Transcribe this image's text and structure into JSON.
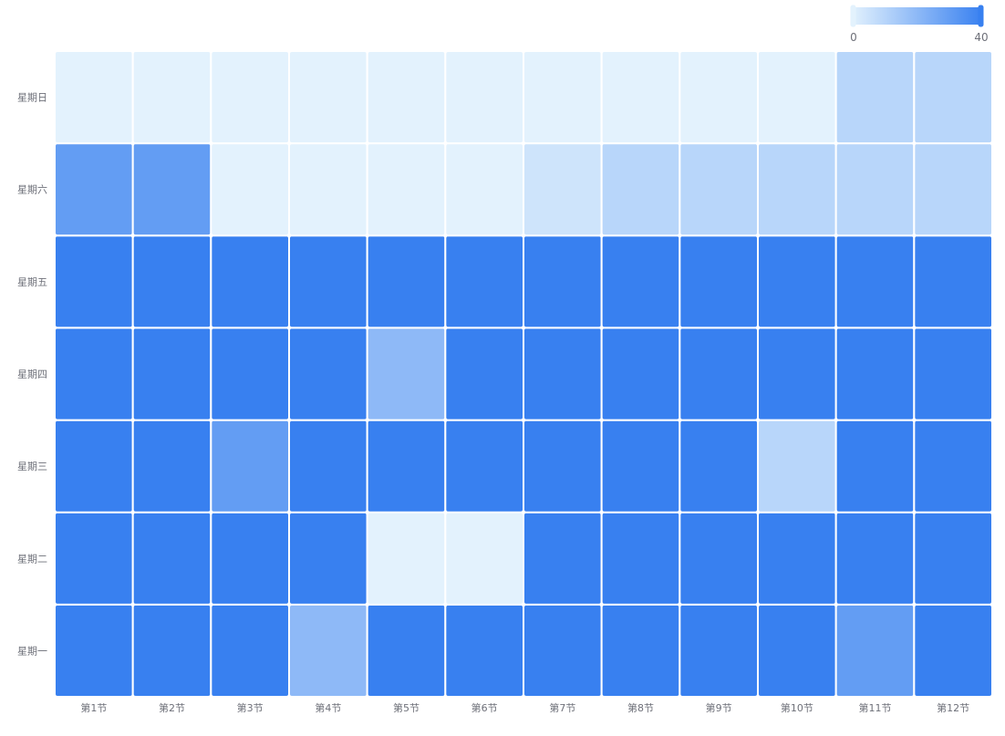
{
  "chart_data": {
    "type": "heatmap",
    "x_categories": [
      "第1节",
      "第2节",
      "第3节",
      "第4节",
      "第5节",
      "第6节",
      "第7节",
      "第8节",
      "第9节",
      "第10节",
      "第11节",
      "第12节"
    ],
    "y_categories": [
      "星期一",
      "星期二",
      "星期三",
      "星期四",
      "星期五",
      "星期六",
      "星期日"
    ],
    "values": [
      [
        40,
        40,
        40,
        20,
        40,
        40,
        40,
        40,
        40,
        40,
        30,
        40
      ],
      [
        40,
        40,
        40,
        40,
        0,
        0,
        40,
        40,
        40,
        40,
        40,
        40
      ],
      [
        40,
        40,
        30,
        40,
        40,
        40,
        40,
        40,
        40,
        10,
        40,
        40
      ],
      [
        40,
        40,
        40,
        40,
        20,
        40,
        40,
        40,
        40,
        40,
        40,
        40
      ],
      [
        40,
        40,
        40,
        40,
        40,
        40,
        40,
        40,
        40,
        40,
        40,
        40
      ],
      [
        30,
        30,
        0,
        0,
        0,
        0,
        5,
        10,
        10,
        10,
        10,
        10
      ],
      [
        0,
        0,
        0,
        0,
        0,
        0,
        0,
        0,
        0,
        0,
        10,
        10
      ]
    ],
    "visual_map": {
      "min": 0,
      "max": 40,
      "min_label": "0",
      "max_label": "40",
      "color_low": "#e3f2fd",
      "color_high": "#3880f0",
      "placement": "top-right"
    },
    "cell_border_color": "#ffffff"
  }
}
